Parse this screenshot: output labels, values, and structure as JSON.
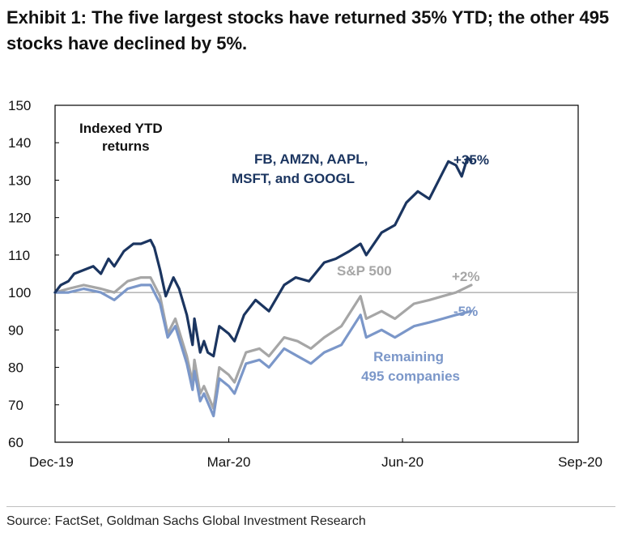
{
  "exhibit_title": "Exhibit 1: The five largest stocks have returned 35% YTD; the other 495 stocks have declined by 5%.",
  "source": "Source: FactSet, Goldman Sachs Global Investment Research",
  "chart_data": {
    "type": "line",
    "title": "",
    "xlabel": "",
    "ylabel": "",
    "inner_label": "Indexed YTD returns",
    "x_ticks": [
      "Dec-19",
      "Mar-20",
      "Jun-20",
      "Sep-20"
    ],
    "xlim": [
      "2019-12-31",
      "2020-09-30"
    ],
    "ylim": [
      60,
      150
    ],
    "y_ticks": [
      60,
      70,
      80,
      90,
      100,
      110,
      120,
      130,
      140,
      150
    ],
    "reference_line": 100,
    "grid": false,
    "series": [
      {
        "name": "FB, AMZN, AAPL, MSFT, and GOOGL",
        "end_label": "+35%",
        "color": "#1b3560",
        "points": [
          [
            "2019-12-31",
            100
          ],
          [
            "2020-01-03",
            102
          ],
          [
            "2020-01-07",
            103
          ],
          [
            "2020-01-10",
            105
          ],
          [
            "2020-01-15",
            106
          ],
          [
            "2020-01-20",
            107
          ],
          [
            "2020-01-24",
            105
          ],
          [
            "2020-01-28",
            109
          ],
          [
            "2020-01-31",
            107
          ],
          [
            "2020-02-05",
            111
          ],
          [
            "2020-02-10",
            113
          ],
          [
            "2020-02-14",
            113
          ],
          [
            "2020-02-19",
            114
          ],
          [
            "2020-02-21",
            112
          ],
          [
            "2020-02-24",
            106
          ],
          [
            "2020-02-27",
            99
          ],
          [
            "2020-03-02",
            104
          ],
          [
            "2020-03-05",
            101
          ],
          [
            "2020-03-09",
            94
          ],
          [
            "2020-03-12",
            86
          ],
          [
            "2020-03-13",
            93
          ],
          [
            "2020-03-16",
            84
          ],
          [
            "2020-03-18",
            87
          ],
          [
            "2020-03-20",
            84
          ],
          [
            "2020-03-23",
            83
          ],
          [
            "2020-03-26",
            91
          ],
          [
            "2020-03-31",
            89
          ],
          [
            "2020-04-03",
            87
          ],
          [
            "2020-04-08",
            94
          ],
          [
            "2020-04-14",
            98
          ],
          [
            "2020-04-21",
            95
          ],
          [
            "2020-04-29",
            102
          ],
          [
            "2020-05-05",
            104
          ],
          [
            "2020-05-12",
            103
          ],
          [
            "2020-05-20",
            108
          ],
          [
            "2020-05-26",
            109
          ],
          [
            "2020-06-02",
            111
          ],
          [
            "2020-06-08",
            113
          ],
          [
            "2020-06-11",
            110
          ],
          [
            "2020-06-19",
            116
          ],
          [
            "2020-06-26",
            118
          ],
          [
            "2020-07-02",
            124
          ],
          [
            "2020-07-08",
            127
          ],
          [
            "2020-07-14",
            125
          ],
          [
            "2020-07-21",
            132
          ],
          [
            "2020-07-24",
            135
          ],
          [
            "2020-07-28",
            134
          ],
          [
            "2020-07-31",
            131
          ],
          [
            "2020-08-03",
            136
          ],
          [
            "2020-08-05",
            135
          ]
        ]
      },
      {
        "name": "S&P 500",
        "end_label": "+2%",
        "color": "#a6a6a6",
        "points": [
          [
            "2019-12-31",
            100
          ],
          [
            "2020-01-07",
            101
          ],
          [
            "2020-01-15",
            102
          ],
          [
            "2020-01-24",
            101
          ],
          [
            "2020-01-31",
            100
          ],
          [
            "2020-02-07",
            103
          ],
          [
            "2020-02-14",
            104
          ],
          [
            "2020-02-19",
            104
          ],
          [
            "2020-02-24",
            99
          ],
          [
            "2020-02-28",
            89
          ],
          [
            "2020-03-03",
            93
          ],
          [
            "2020-03-09",
            83
          ],
          [
            "2020-03-12",
            76
          ],
          [
            "2020-03-13",
            82
          ],
          [
            "2020-03-16",
            73
          ],
          [
            "2020-03-18",
            75
          ],
          [
            "2020-03-23",
            69
          ],
          [
            "2020-03-26",
            80
          ],
          [
            "2020-03-31",
            78
          ],
          [
            "2020-04-03",
            76
          ],
          [
            "2020-04-09",
            84
          ],
          [
            "2020-04-16",
            85
          ],
          [
            "2020-04-21",
            83
          ],
          [
            "2020-04-29",
            88
          ],
          [
            "2020-05-06",
            87
          ],
          [
            "2020-05-13",
            85
          ],
          [
            "2020-05-20",
            88
          ],
          [
            "2020-05-29",
            91
          ],
          [
            "2020-06-08",
            99
          ],
          [
            "2020-06-11",
            93
          ],
          [
            "2020-06-19",
            95
          ],
          [
            "2020-06-26",
            93
          ],
          [
            "2020-07-06",
            97
          ],
          [
            "2020-07-14",
            98
          ],
          [
            "2020-07-21",
            99
          ],
          [
            "2020-07-28",
            100
          ],
          [
            "2020-08-05",
            102
          ]
        ]
      },
      {
        "name": "Remaining 495 companies",
        "end_label": "-5%",
        "color": "#7b97c9",
        "points": [
          [
            "2019-12-31",
            100
          ],
          [
            "2020-01-07",
            100
          ],
          [
            "2020-01-15",
            101
          ],
          [
            "2020-01-24",
            100
          ],
          [
            "2020-01-31",
            98
          ],
          [
            "2020-02-07",
            101
          ],
          [
            "2020-02-14",
            102
          ],
          [
            "2020-02-19",
            102
          ],
          [
            "2020-02-24",
            97
          ],
          [
            "2020-02-28",
            88
          ],
          [
            "2020-03-03",
            91
          ],
          [
            "2020-03-09",
            81
          ],
          [
            "2020-03-12",
            74
          ],
          [
            "2020-03-13",
            79
          ],
          [
            "2020-03-16",
            71
          ],
          [
            "2020-03-18",
            73
          ],
          [
            "2020-03-23",
            67
          ],
          [
            "2020-03-26",
            77
          ],
          [
            "2020-03-31",
            75
          ],
          [
            "2020-04-03",
            73
          ],
          [
            "2020-04-09",
            81
          ],
          [
            "2020-04-16",
            82
          ],
          [
            "2020-04-21",
            80
          ],
          [
            "2020-04-29",
            85
          ],
          [
            "2020-05-06",
            83
          ],
          [
            "2020-05-13",
            81
          ],
          [
            "2020-05-20",
            84
          ],
          [
            "2020-05-29",
            86
          ],
          [
            "2020-06-08",
            94
          ],
          [
            "2020-06-11",
            88
          ],
          [
            "2020-06-19",
            90
          ],
          [
            "2020-06-26",
            88
          ],
          [
            "2020-07-06",
            91
          ],
          [
            "2020-07-14",
            92
          ],
          [
            "2020-07-21",
            93
          ],
          [
            "2020-07-28",
            94
          ],
          [
            "2020-08-05",
            95
          ]
        ]
      }
    ]
  }
}
